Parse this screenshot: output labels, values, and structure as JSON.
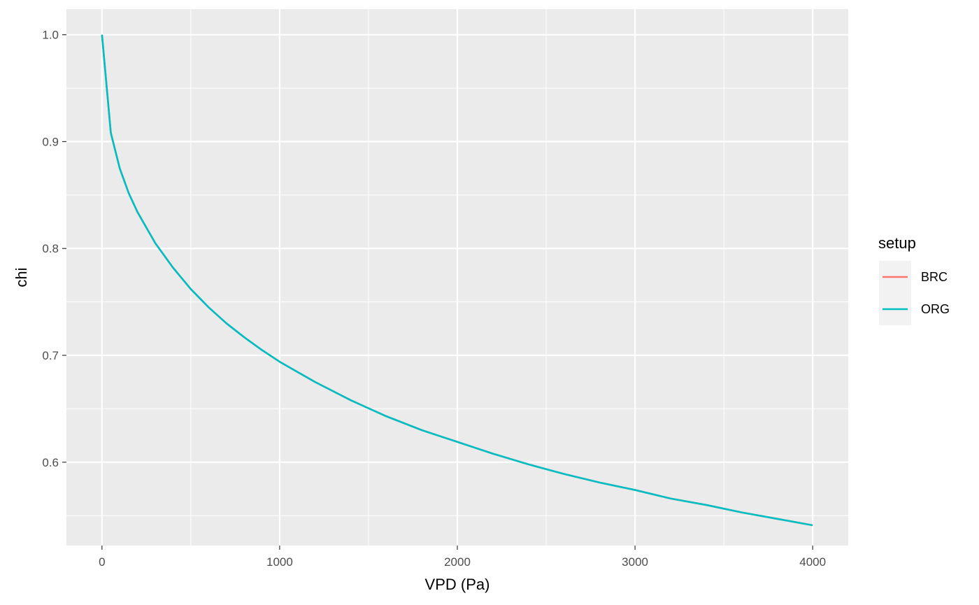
{
  "chart_data": {
    "type": "line",
    "title": "",
    "xlabel": "VPD (Pa)",
    "ylabel": "chi",
    "xlim": [
      -200,
      4200
    ],
    "ylim": [
      0.522,
      1.024
    ],
    "x_ticks": [
      0,
      1000,
      2000,
      3000,
      4000
    ],
    "x_tick_labels": [
      "0",
      "1000",
      "2000",
      "3000",
      "4000"
    ],
    "y_ticks": [
      0.6,
      0.7,
      0.8,
      0.9,
      1.0
    ],
    "y_tick_labels": [
      "0.6",
      "0.7",
      "0.8",
      "0.9",
      "1.0"
    ],
    "grid": true,
    "legend": {
      "title": "setup",
      "position": "right"
    },
    "series": [
      {
        "name": "BRC",
        "color": "#F8766D",
        "x": [
          0,
          50,
          100,
          150,
          200,
          300,
          400,
          500,
          600,
          700,
          800,
          900,
          1000,
          1200,
          1400,
          1600,
          1800,
          2000,
          2200,
          2400,
          2600,
          2800,
          3000,
          3200,
          3400,
          3600,
          3800,
          4000
        ],
        "y": [
          1.0,
          0.908,
          0.875,
          0.852,
          0.834,
          0.805,
          0.782,
          0.762,
          0.745,
          0.73,
          0.717,
          0.705,
          0.694,
          0.675,
          0.658,
          0.643,
          0.63,
          0.619,
          0.608,
          0.598,
          0.589,
          0.581,
          0.574,
          0.566,
          0.56,
          0.553,
          0.547,
          0.541
        ]
      },
      {
        "name": "ORG",
        "color": "#00BFC4",
        "x": [
          0,
          50,
          100,
          150,
          200,
          300,
          400,
          500,
          600,
          700,
          800,
          900,
          1000,
          1200,
          1400,
          1600,
          1800,
          2000,
          2200,
          2400,
          2600,
          2800,
          3000,
          3200,
          3400,
          3600,
          3800,
          4000
        ],
        "y": [
          1.0,
          0.908,
          0.875,
          0.852,
          0.834,
          0.805,
          0.782,
          0.762,
          0.745,
          0.73,
          0.717,
          0.705,
          0.694,
          0.675,
          0.658,
          0.643,
          0.63,
          0.619,
          0.608,
          0.598,
          0.589,
          0.581,
          0.574,
          0.566,
          0.56,
          0.553,
          0.547,
          0.541
        ]
      }
    ]
  }
}
